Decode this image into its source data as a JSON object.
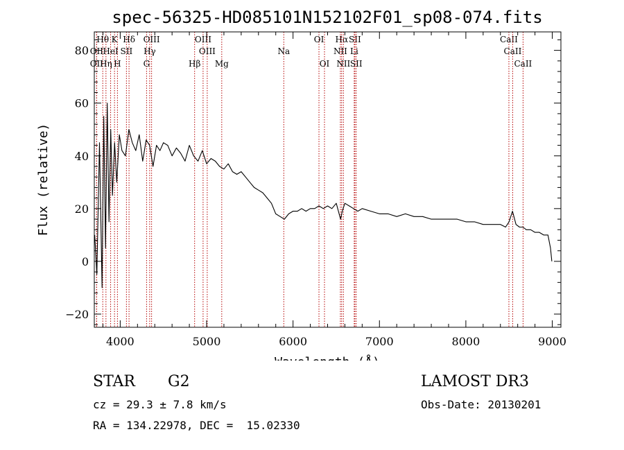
{
  "chart_data": {
    "type": "line",
    "title": "spec-56325-HD085101N152102F01_sp08-074.fits",
    "xlabel": "Wavelength (Å)",
    "ylabel": "Flux (relative)",
    "xlim": [
      3700,
      9100
    ],
    "ylim": [
      -25,
      87
    ],
    "x_ticks": [
      4000,
      5000,
      6000,
      7000,
      8000,
      9000
    ],
    "x_tick_labels": [
      "4000",
      "5000",
      "6000",
      "7000",
      "8000",
      "9000"
    ],
    "y_ticks": [
      -20,
      0,
      20,
      40,
      60,
      80
    ],
    "y_tick_labels": [
      "−20",
      "0",
      "20",
      "40",
      "60",
      "80"
    ],
    "series": [
      {
        "name": "flux",
        "x": [
          3705,
          3730,
          3760,
          3790,
          3810,
          3830,
          3850,
          3870,
          3890,
          3910,
          3935,
          3960,
          3990,
          4020,
          4060,
          4100,
          4140,
          4180,
          4220,
          4260,
          4300,
          4340,
          4380,
          4420,
          4460,
          4500,
          4550,
          4600,
          4650,
          4700,
          4750,
          4800,
          4850,
          4900,
          4950,
          5000,
          5050,
          5100,
          5150,
          5200,
          5250,
          5300,
          5350,
          5400,
          5450,
          5500,
          5550,
          5600,
          5650,
          5700,
          5750,
          5800,
          5850,
          5900,
          5950,
          6000,
          6050,
          6100,
          6150,
          6200,
          6250,
          6300,
          6350,
          6400,
          6450,
          6500,
          6550,
          6570,
          6600,
          6650,
          6700,
          6750,
          6800,
          6900,
          7000,
          7100,
          7200,
          7300,
          7400,
          7500,
          7600,
          7700,
          7800,
          7900,
          8000,
          8100,
          8200,
          8300,
          8400,
          8460,
          8500,
          8540,
          8580,
          8620,
          8660,
          8700,
          8750,
          8800,
          8850,
          8900,
          8950,
          8980,
          8995
        ],
        "y": [
          10,
          -5,
          45,
          -10,
          55,
          5,
          60,
          15,
          50,
          25,
          45,
          30,
          48,
          42,
          40,
          50,
          45,
          42,
          48,
          38,
          46,
          44,
          36,
          44,
          42,
          45,
          44,
          40,
          43,
          41,
          38,
          44,
          40,
          38,
          42,
          37,
          39,
          38,
          36,
          35,
          37,
          34,
          33,
          34,
          32,
          30,
          28,
          27,
          26,
          24,
          22,
          18,
          17,
          16,
          18,
          19,
          19,
          20,
          19,
          20,
          20,
          21,
          20,
          21,
          20,
          22,
          16,
          19,
          22,
          21,
          20,
          19,
          20,
          19,
          18,
          18,
          17,
          18,
          17,
          17,
          16,
          16,
          16,
          16,
          15,
          15,
          14,
          14,
          14,
          13,
          15,
          19,
          14,
          13,
          13,
          12,
          12,
          11,
          11,
          10,
          10,
          5,
          0
        ]
      }
    ],
    "line_markers": [
      {
        "label": "Hθ",
        "x": 3798,
        "row": 1
      },
      {
        "label": "K",
        "x": 3934,
        "row": 1
      },
      {
        "label": "Hδ",
        "x": 4102,
        "row": 1
      },
      {
        "label": "OIII",
        "x": 4363,
        "row": 1
      },
      {
        "label": "OIII",
        "x": 4959,
        "row": 1
      },
      {
        "label": "OI",
        "x": 6300,
        "row": 1
      },
      {
        "label": "Hα",
        "x": 6563,
        "row": 1
      },
      {
        "label": "SII",
        "x": 6716,
        "row": 1
      },
      {
        "label": "CaII",
        "x": 8498,
        "row": 1
      },
      {
        "label": "OII",
        "x": 3727,
        "row": 2
      },
      {
        "label": "HeI",
        "x": 3889,
        "row": 2
      },
      {
        "label": "SII",
        "x": 4072,
        "row": 2
      },
      {
        "label": "Hγ",
        "x": 4341,
        "row": 2
      },
      {
        "label": "OIII",
        "x": 5007,
        "row": 2
      },
      {
        "label": "Na",
        "x": 5893,
        "row": 2
      },
      {
        "label": "NII",
        "x": 6548,
        "row": 2
      },
      {
        "label": "Li",
        "x": 6708,
        "row": 2
      },
      {
        "label": "CaII",
        "x": 8542,
        "row": 2
      },
      {
        "label": "OII",
        "x": 3727,
        "row": 3
      },
      {
        "label": "Hη",
        "x": 3835,
        "row": 3
      },
      {
        "label": "H",
        "x": 3968,
        "row": 3
      },
      {
        "label": "G",
        "x": 4305,
        "row": 3
      },
      {
        "label": "Hβ",
        "x": 4861,
        "row": 3
      },
      {
        "label": "Mg",
        "x": 5175,
        "row": 3
      },
      {
        "label": "OI",
        "x": 6364,
        "row": 3
      },
      {
        "label": "NII",
        "x": 6583,
        "row": 3
      },
      {
        "label": "SII",
        "x": 6731,
        "row": 3
      },
      {
        "label": "CaII",
        "x": 8662,
        "row": 3
      }
    ]
  },
  "info": {
    "object_class": "STAR",
    "subclass": "G2",
    "cz": "cz = 29.3 ± 7.8 km/s",
    "coords": "RA = 134.22978, DEC =  15.02330",
    "survey": "LAMOST DR3",
    "obs_date": "Obs-Date: 20130201"
  }
}
